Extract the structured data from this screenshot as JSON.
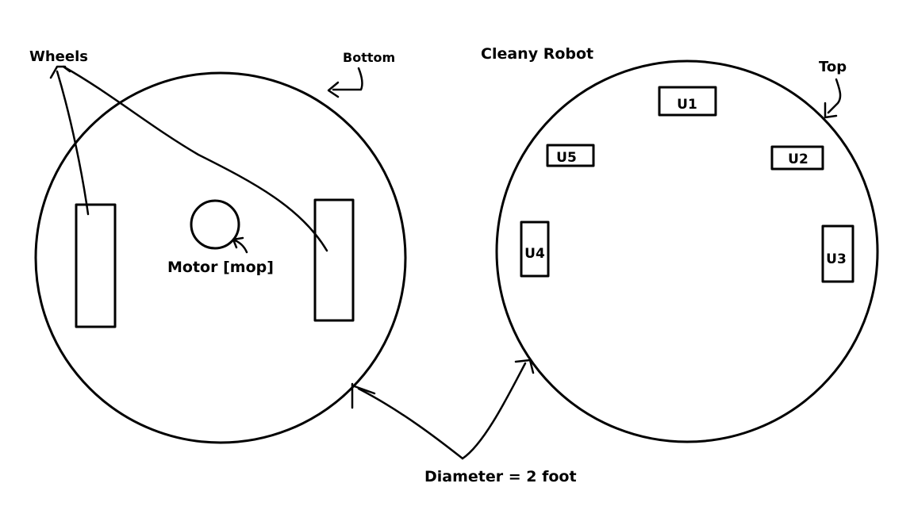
{
  "title": "Cleany Robot",
  "views": {
    "bottom": {
      "label": "Bottom",
      "wheels_label": "Wheels",
      "motor_label": "Motor [mop]"
    },
    "top": {
      "label": "Top",
      "sensors": [
        "U1",
        "U2",
        "U3",
        "U4",
        "U5"
      ]
    }
  },
  "dimension_label": "Diameter = 2 foot",
  "colors": {
    "ink": "#000000",
    "background": "#ffffff"
  }
}
